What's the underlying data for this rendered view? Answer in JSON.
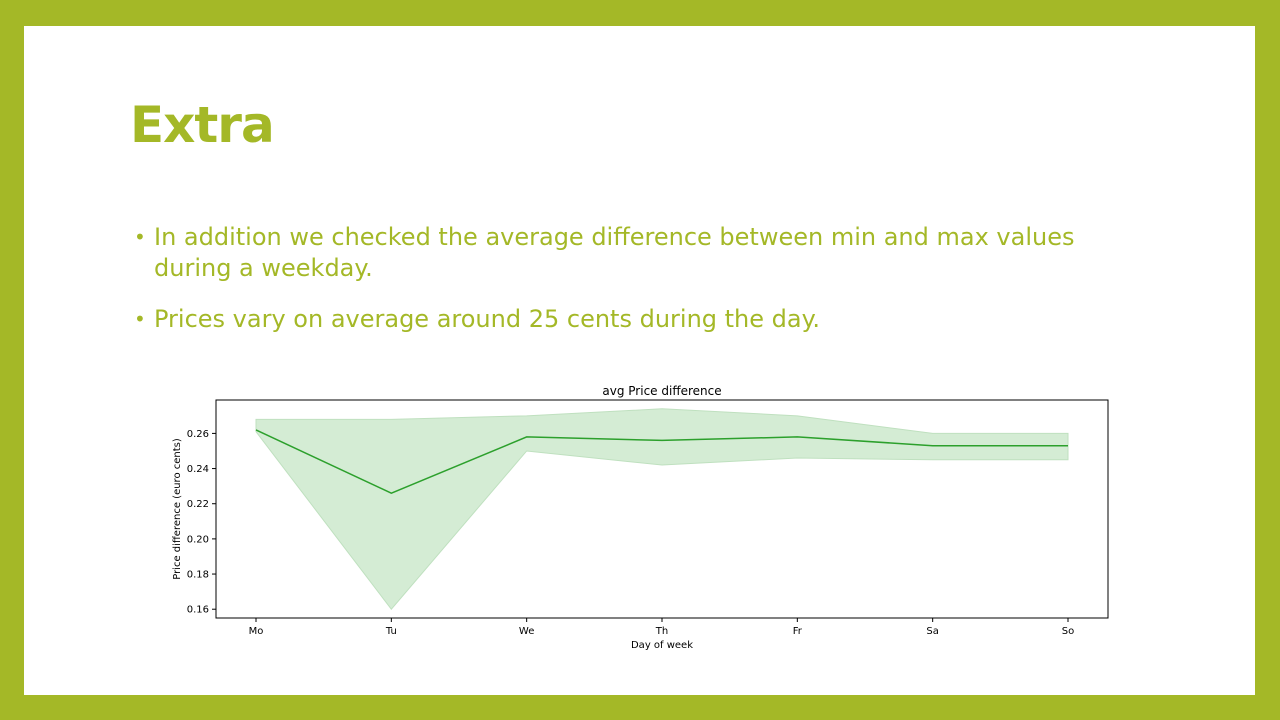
{
  "slide": {
    "title": "Extra",
    "bullets": [
      "In addition we checked the average difference between min and max values during a weekday.",
      " Prices vary on average around 25 cents during the day."
    ],
    "colors": {
      "frame": "#a4b827",
      "text": "#a4b827",
      "line": "#2ca02c",
      "band": "#d4ecd4"
    }
  },
  "chart_data": {
    "type": "line",
    "title": "avg Price difference",
    "xlabel": "Day of week",
    "ylabel": "Price difference (euro cents)",
    "categories": [
      "Mo",
      "Tu",
      "We",
      "Th",
      "Fr",
      "Sa",
      "So"
    ],
    "series": [
      {
        "values": [
          0.262,
          0.226,
          0.258,
          0.256,
          0.258,
          0.253,
          0.253
        ],
        "lower": [
          0.261,
          0.16,
          0.25,
          0.242,
          0.246,
          0.245,
          0.245
        ],
        "upper": [
          0.268,
          0.268,
          0.27,
          0.274,
          0.27,
          0.26,
          0.26
        ]
      }
    ],
    "yticks": [
      "0.16",
      "0.18",
      "0.20",
      "0.22",
      "0.24",
      "0.26"
    ],
    "ylim": [
      0.155,
      0.279
    ],
    "grid": false,
    "legend": "none"
  }
}
